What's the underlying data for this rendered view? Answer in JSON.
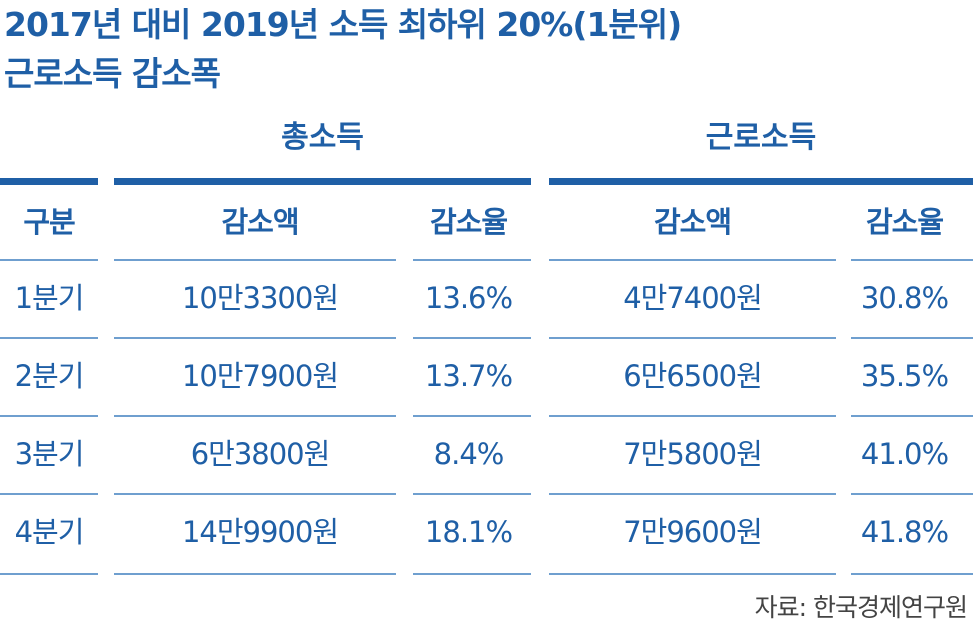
{
  "title": {
    "line1": "2017년 대비 2019년 소득 최하위 20%(1분위)",
    "line2": "근로소득 감소폭"
  },
  "colors": {
    "accent": "#1f5fa6",
    "rule": "#6f9fcf",
    "source": "#444444"
  },
  "chart_data": {
    "type": "table",
    "groups": [
      "총소득",
      "근로소득"
    ],
    "columns": [
      "구분",
      "감소액",
      "감소율",
      "감소액",
      "감소율"
    ],
    "rows": [
      [
        "1분기",
        "10만3300원",
        "13.6%",
        "4만7400원",
        "30.8%"
      ],
      [
        "2분기",
        "10만7900원",
        "13.7%",
        "6만6500원",
        "35.5%"
      ],
      [
        "3분기",
        "6만3800원",
        "8.4%",
        "7만5800원",
        "41.0%"
      ],
      [
        "4분기",
        "14만9900원",
        "18.1%",
        "7만9600원",
        "41.8%"
      ]
    ]
  },
  "source": "자료: 한국경제연구원"
}
